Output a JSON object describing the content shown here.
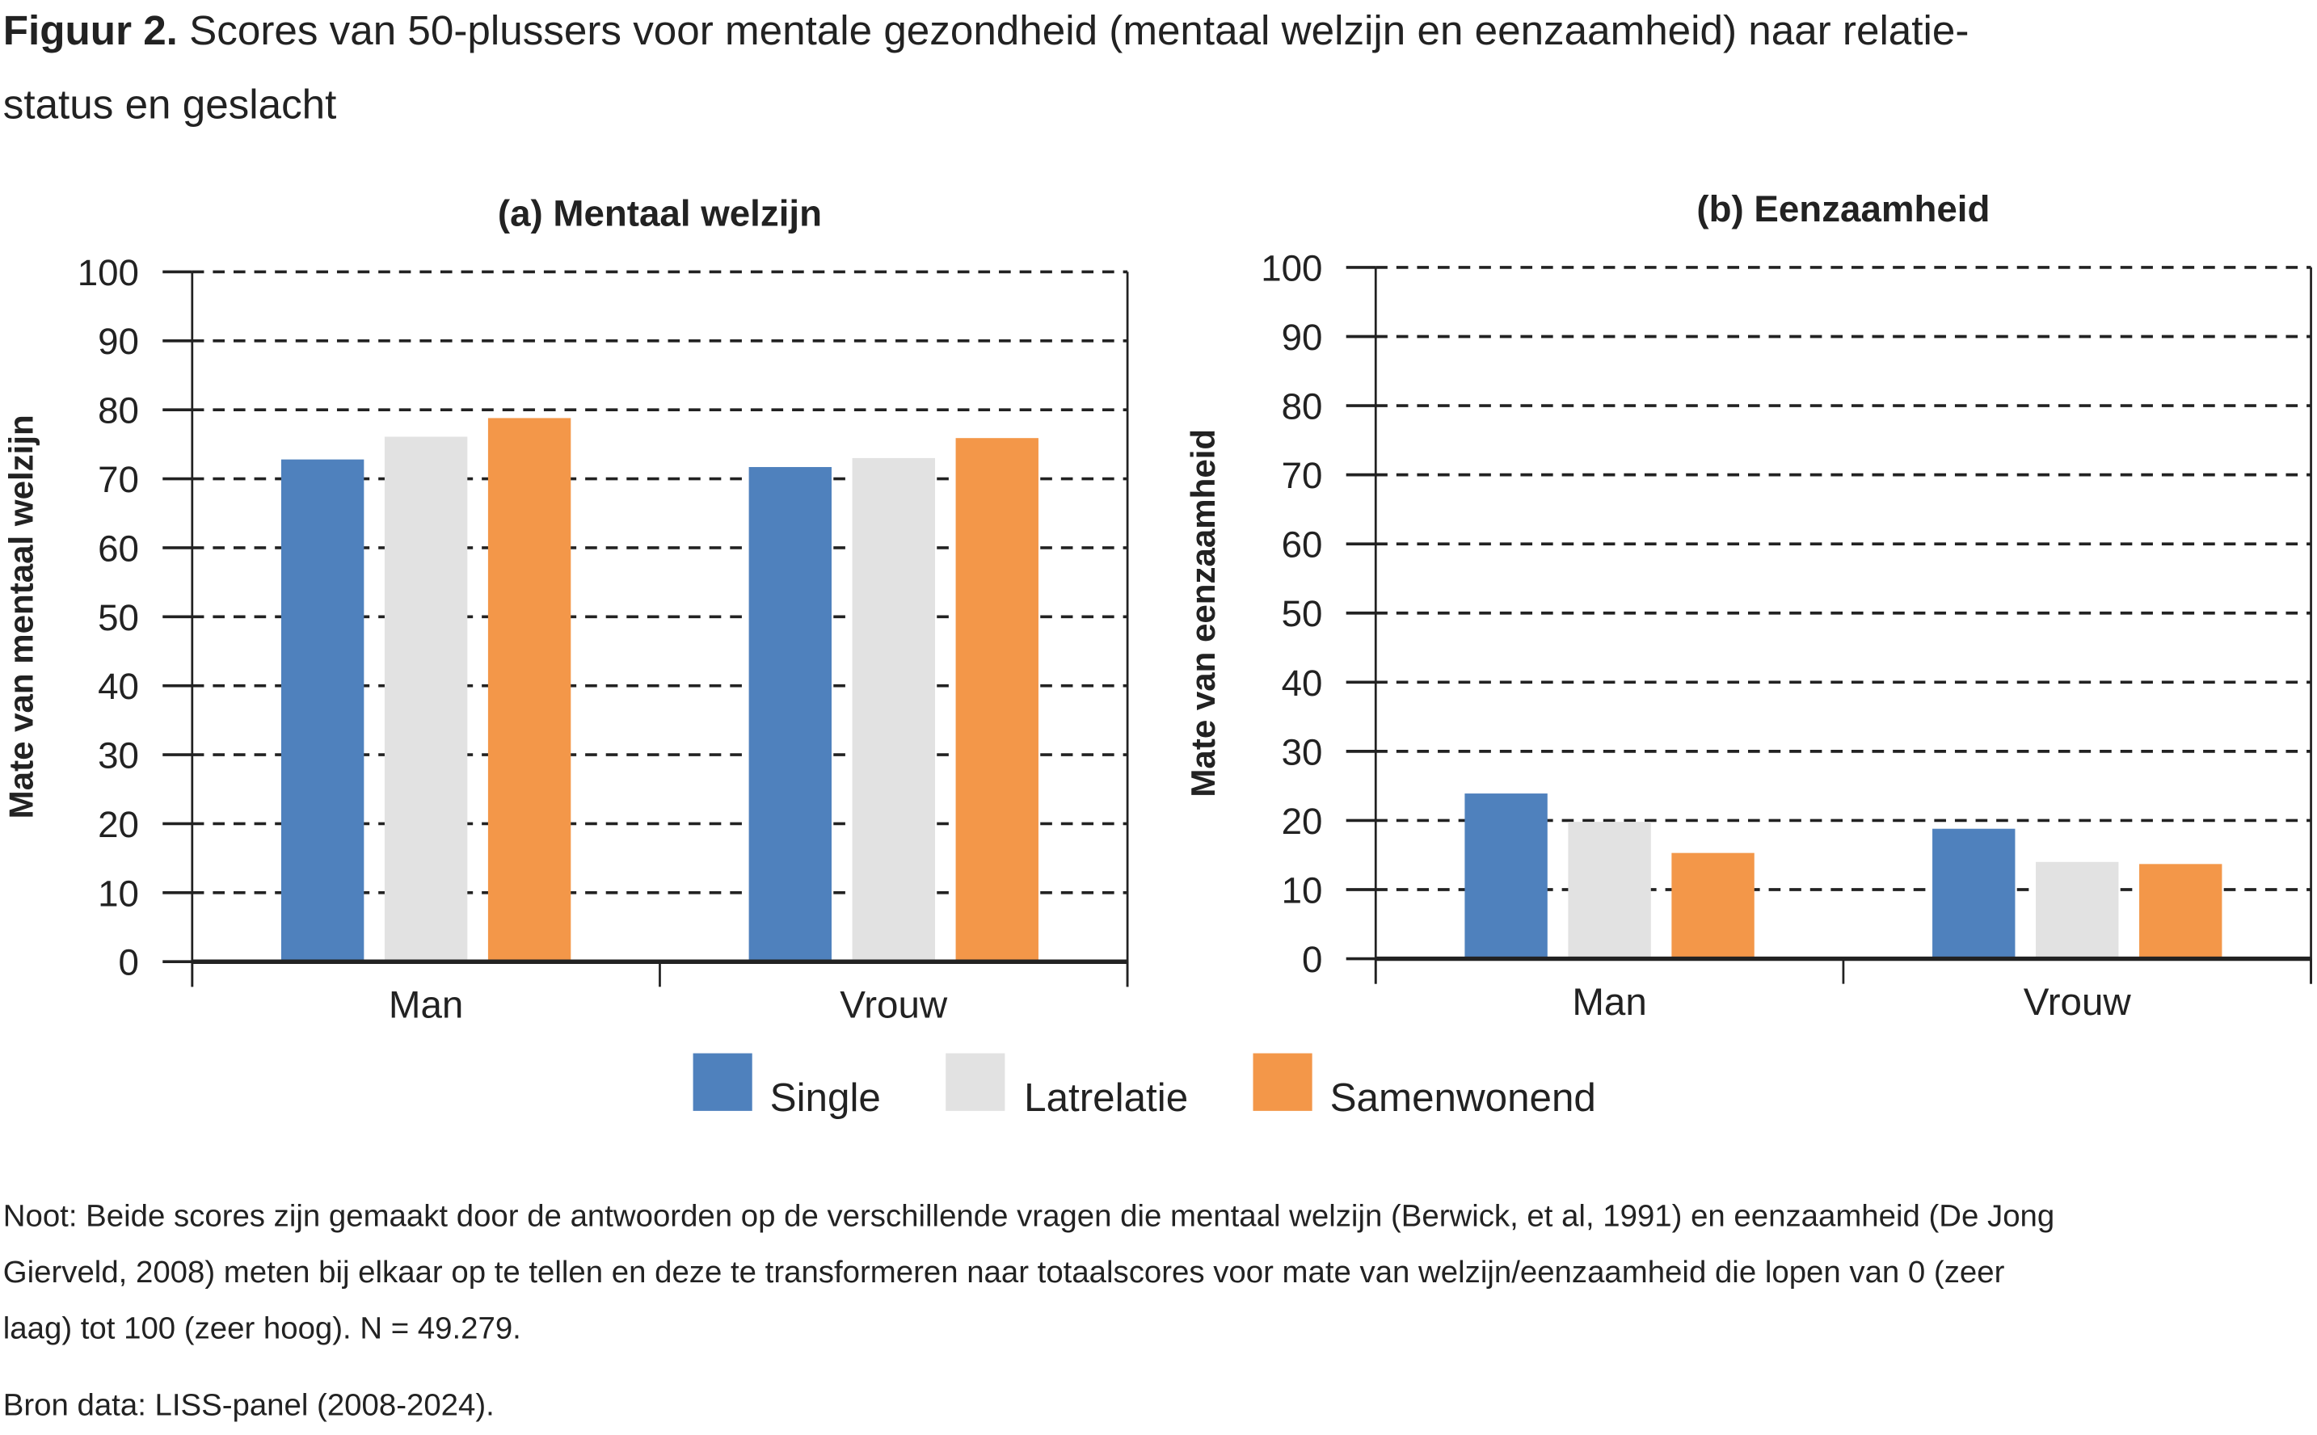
{
  "figure": {
    "title_prefix": "Figuur 2.",
    "title_line1": " Scores van 50-plussers voor mentale gezondheid (mentaal welzijn en eenzaamheid) naar relatie-",
    "title_line2": "status en geslacht"
  },
  "colors": {
    "Single": "#4f81bd",
    "Latrelatie": "#e2e2e2",
    "Samenwonend": "#f39749"
  },
  "chart_data": [
    {
      "type": "bar",
      "title": "(a) Mentaal welzijn",
      "ylabel": "Mate van mentaal welzijn",
      "xlabel": "",
      "ylim": [
        0,
        100
      ],
      "yticks": [
        "0",
        "10",
        "20",
        "30",
        "40",
        "50",
        "60",
        "70",
        "80",
        "90",
        "100"
      ],
      "grid": true,
      "categories": [
        "Man",
        "Vrouw"
      ],
      "series": [
        {
          "name": "Single",
          "values": [
            72.8,
            71.7
          ]
        },
        {
          "name": "Latrelatie",
          "values": [
            76.1,
            73.0
          ]
        },
        {
          "name": "Samenwonend",
          "values": [
            78.8,
            75.9
          ]
        }
      ]
    },
    {
      "type": "bar",
      "title": "(b) Eenzaamheid",
      "ylabel": "Mate van eenzaamheid",
      "xlabel": "",
      "ylim": [
        0,
        100
      ],
      "yticks": [
        "0",
        "10",
        "20",
        "30",
        "40",
        "50",
        "60",
        "70",
        "80",
        "90",
        "100"
      ],
      "grid": true,
      "categories": [
        "Man",
        "Vrouw"
      ],
      "series": [
        {
          "name": "Single",
          "values": [
            23.9,
            18.8
          ]
        },
        {
          "name": "Latrelatie",
          "values": [
            19.8,
            14.0
          ]
        },
        {
          "name": "Samenwonend",
          "values": [
            15.3,
            13.7
          ]
        }
      ]
    }
  ],
  "legend": {
    "placement": "bottom",
    "items": [
      "Single",
      "Latrelatie",
      "Samenwonend"
    ]
  },
  "notes": {
    "line1": "Noot: Beide scores zijn gemaakt door de antwoorden op de verschillende vragen die mentaal welzijn (Berwick, et al, 1991) en eenzaamheid (De Jong",
    "line2": "Gierveld, 2008) meten bij elkaar op te tellen en deze te transformeren naar totaalscores voor mate van welzijn/eenzaamheid die lopen van 0 (zeer",
    "line3": "laag) tot 100 (zeer hoog). N = 49.279.",
    "source": "Bron data: LISS-panel (2008-2024)."
  }
}
